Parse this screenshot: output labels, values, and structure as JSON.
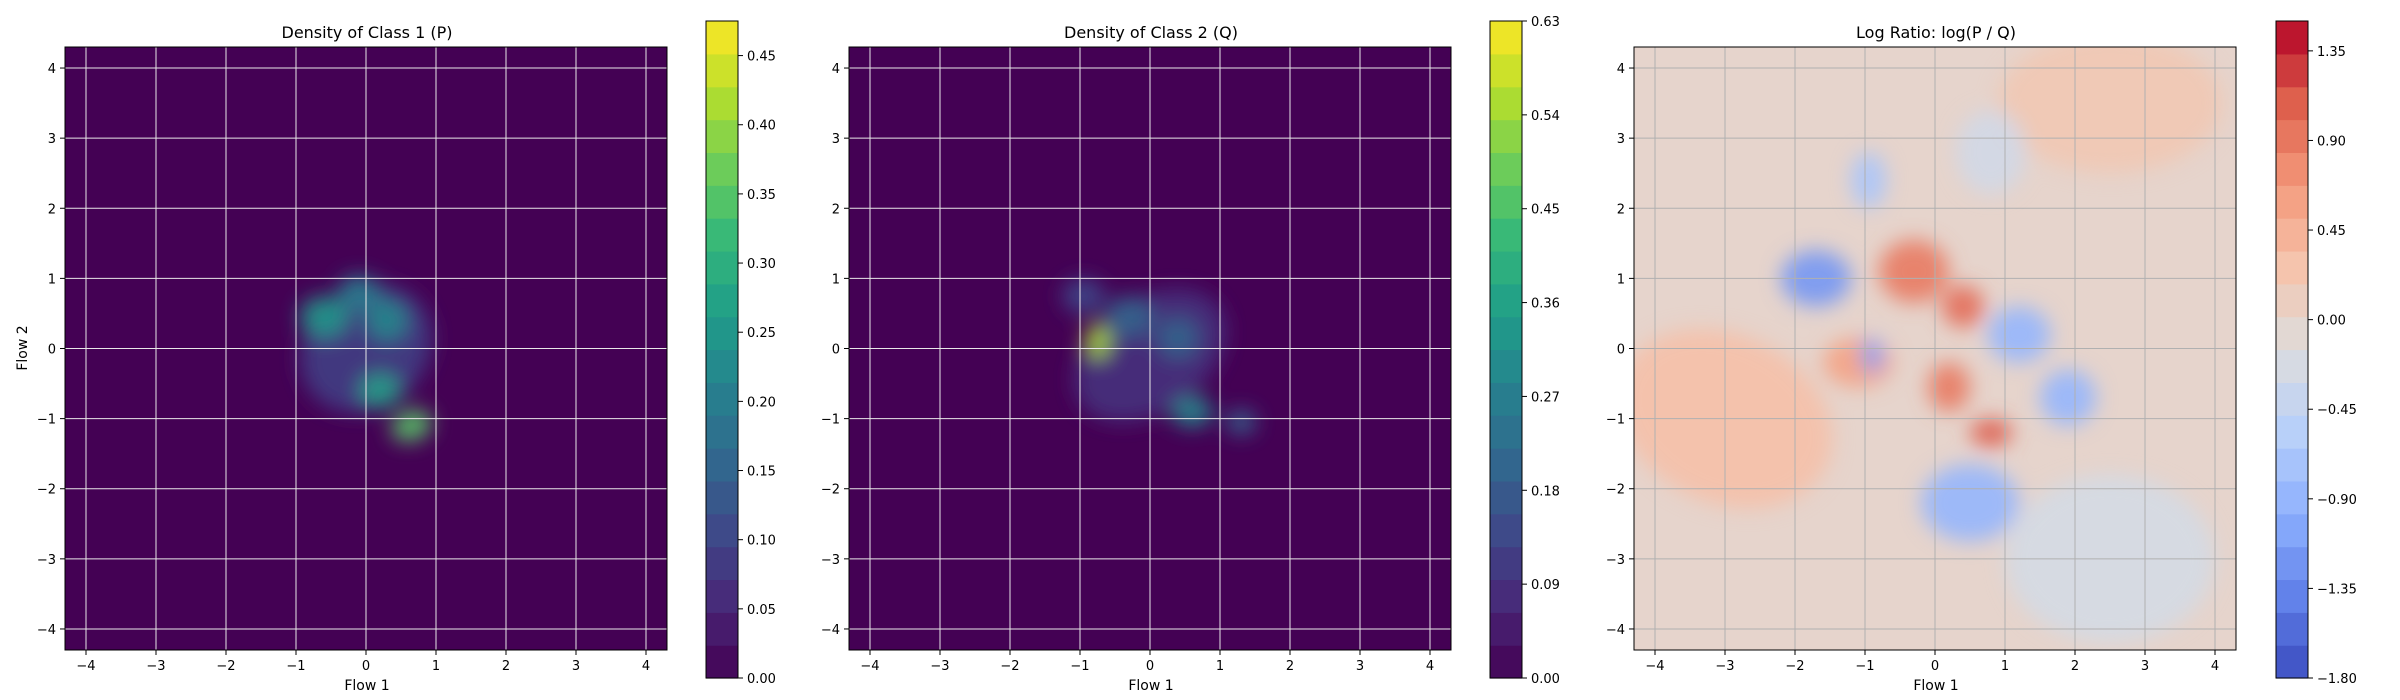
{
  "chart_data": [
    {
      "type": "heatmap",
      "title": "Density of Class 1 (P)",
      "xlabel": "Flow 1",
      "ylabel": "Flow 2",
      "xlim": [
        -4.3,
        4.3
      ],
      "ylim": [
        -4.3,
        4.3
      ],
      "xticks": [
        -4,
        -3,
        -2,
        -1,
        0,
        1,
        2,
        3,
        4
      ],
      "yticks": [
        -4,
        -3,
        -2,
        -1,
        0,
        1,
        2,
        3,
        4
      ],
      "grid": true,
      "colormap": "viridis",
      "colorbar": {
        "min": 0.0,
        "max": 0.475,
        "ticks": [
          "0.00",
          "0.05",
          "0.10",
          "0.15",
          "0.20",
          "0.25",
          "0.30",
          "0.35",
          "0.40",
          "0.45"
        ]
      },
      "blobs": [
        {
          "x": 0.0,
          "y": 0.0,
          "sx": 1.0,
          "sy": 0.85,
          "rot": -40,
          "value": 0.09
        },
        {
          "x": -0.6,
          "y": 0.45,
          "sx": 0.35,
          "sy": 0.3,
          "rot": 0,
          "value": 0.25
        },
        {
          "x": -0.1,
          "y": 0.8,
          "sx": 0.3,
          "sy": 0.25,
          "rot": 0,
          "value": 0.2
        },
        {
          "x": 0.3,
          "y": 0.4,
          "sx": 0.3,
          "sy": 0.3,
          "rot": 0,
          "value": 0.22
        },
        {
          "x": 0.2,
          "y": -0.6,
          "sx": 0.3,
          "sy": 0.25,
          "rot": 0,
          "value": 0.27
        },
        {
          "x": 0.65,
          "y": -1.1,
          "sx": 0.3,
          "sy": 0.22,
          "rot": -20,
          "value": 0.35
        }
      ]
    },
    {
      "type": "heatmap",
      "title": "Density of Class 2 (Q)",
      "xlabel": "Flow 1",
      "ylabel": "",
      "xlim": [
        -4.3,
        4.3
      ],
      "ylim": [
        -4.3,
        4.3
      ],
      "xticks": [
        -4,
        -3,
        -2,
        -1,
        0,
        1,
        2,
        3,
        4
      ],
      "yticks": [
        -4,
        -3,
        -2,
        -1,
        0,
        1,
        2,
        3,
        4
      ],
      "grid": true,
      "colormap": "viridis",
      "colorbar": {
        "min": 0.0,
        "max": 0.63,
        "ticks": [
          "0.00",
          "0.09",
          "0.18",
          "0.27",
          "0.36",
          "0.45",
          "0.54",
          "0.63"
        ]
      },
      "blobs": [
        {
          "x": 0.0,
          "y": -0.1,
          "sx": 1.2,
          "sy": 0.8,
          "rot": -35,
          "value": 0.09
        },
        {
          "x": -0.75,
          "y": 0.1,
          "sx": 0.18,
          "sy": 0.25,
          "rot": 0,
          "value": 0.55
        },
        {
          "x": -0.3,
          "y": 0.45,
          "sx": 0.35,
          "sy": 0.3,
          "rot": 0,
          "value": 0.2
        },
        {
          "x": 0.4,
          "y": 0.15,
          "sx": 0.3,
          "sy": 0.3,
          "rot": 0,
          "value": 0.2
        },
        {
          "x": 0.6,
          "y": -0.9,
          "sx": 0.3,
          "sy": 0.22,
          "rot": 0,
          "value": 0.3
        },
        {
          "x": 1.3,
          "y": -1.05,
          "sx": 0.22,
          "sy": 0.18,
          "rot": 0,
          "value": 0.2
        },
        {
          "x": -0.95,
          "y": 0.75,
          "sx": 0.3,
          "sy": 0.25,
          "rot": 0,
          "value": 0.14
        }
      ]
    },
    {
      "type": "heatmap",
      "title": "Log Ratio: log(P / Q)",
      "xlabel": "Flow 1",
      "ylabel": "",
      "xlim": [
        -4.3,
        4.3
      ],
      "ylim": [
        -4.3,
        4.3
      ],
      "xticks": [
        -4,
        -3,
        -2,
        -1,
        0,
        1,
        2,
        3,
        4
      ],
      "yticks": [
        -4,
        -3,
        -2,
        -1,
        0,
        1,
        2,
        3,
        4
      ],
      "grid": true,
      "colormap": "coolwarm",
      "colorbar": {
        "min": -1.8,
        "max": 1.5,
        "ticks": [
          "-1.80",
          "-1.35",
          "-0.90",
          "-0.45",
          "0.00",
          "0.45",
          "0.90",
          "1.35"
        ]
      },
      "blobs": [
        {
          "x": -3.0,
          "y": -1.0,
          "sx": 1.6,
          "sy": 1.2,
          "rot": 25,
          "value": 0.3
        },
        {
          "x": 2.5,
          "y": 3.5,
          "sx": 1.6,
          "sy": 1.0,
          "rot": 0,
          "value": 0.2
        },
        {
          "x": 2.5,
          "y": -3.0,
          "sx": 1.5,
          "sy": 1.2,
          "rot": 0,
          "value": -0.25
        },
        {
          "x": -1.7,
          "y": 1.0,
          "sx": 0.5,
          "sy": 0.4,
          "rot": 0,
          "value": -1.2
        },
        {
          "x": -0.3,
          "y": 1.1,
          "sx": 0.5,
          "sy": 0.45,
          "rot": 0,
          "value": 0.9
        },
        {
          "x": 0.4,
          "y": 0.6,
          "sx": 0.3,
          "sy": 0.3,
          "rot": 0,
          "value": 1.0
        },
        {
          "x": 0.2,
          "y": -0.55,
          "sx": 0.3,
          "sy": 0.35,
          "rot": 0,
          "value": 0.9
        },
        {
          "x": 0.8,
          "y": -1.2,
          "sx": 0.3,
          "sy": 0.2,
          "rot": 0,
          "value": 1.1
        },
        {
          "x": -1.1,
          "y": -0.2,
          "sx": 0.5,
          "sy": 0.35,
          "rot": 0,
          "value": 0.6
        },
        {
          "x": -0.95,
          "y": 2.4,
          "sx": 0.25,
          "sy": 0.4,
          "rot": 0,
          "value": -0.7
        },
        {
          "x": 1.2,
          "y": 0.2,
          "sx": 0.45,
          "sy": 0.4,
          "rot": 0,
          "value": -0.9
        },
        {
          "x": 1.9,
          "y": -0.7,
          "sx": 0.4,
          "sy": 0.4,
          "rot": 0,
          "value": -0.9
        },
        {
          "x": -0.9,
          "y": -0.1,
          "sx": 0.15,
          "sy": 0.25,
          "rot": 0,
          "value": -1.1
        },
        {
          "x": 0.5,
          "y": -2.2,
          "sx": 0.7,
          "sy": 0.55,
          "rot": 0,
          "value": -0.9
        },
        {
          "x": 0.8,
          "y": 2.8,
          "sx": 0.5,
          "sy": 0.6,
          "rot": 0,
          "value": -0.3
        }
      ]
    }
  ]
}
